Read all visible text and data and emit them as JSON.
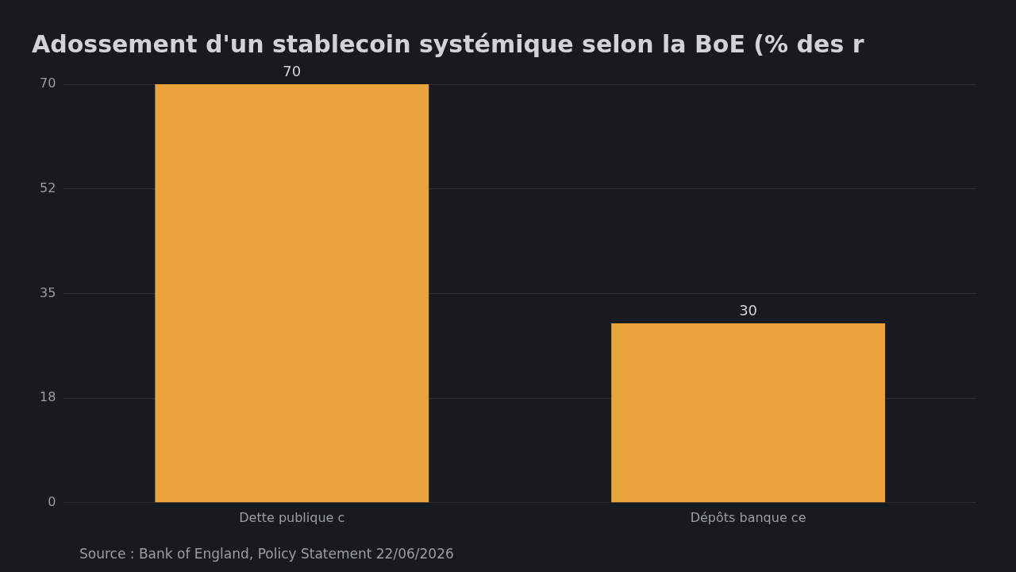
{
  "chart_data": {
    "type": "bar",
    "title": "Adossement d'un stablecoin systémique selon la BoE (% des r",
    "categories": [
      "Dette publique c",
      "Dépôts banque ce"
    ],
    "values": [
      70,
      30
    ],
    "color": "#e8a33d",
    "ylim": [
      0,
      70
    ],
    "yticks": [
      0,
      {
        "value": 17.5,
        "label": "18"
      },
      35,
      {
        "value": 52.5,
        "label": "52"
      },
      70
    ],
    "grid": "y",
    "legend": false,
    "data_labels": true,
    "annotations": [
      "Source : Bank of England, Policy Statement 22/06/2026"
    ]
  }
}
